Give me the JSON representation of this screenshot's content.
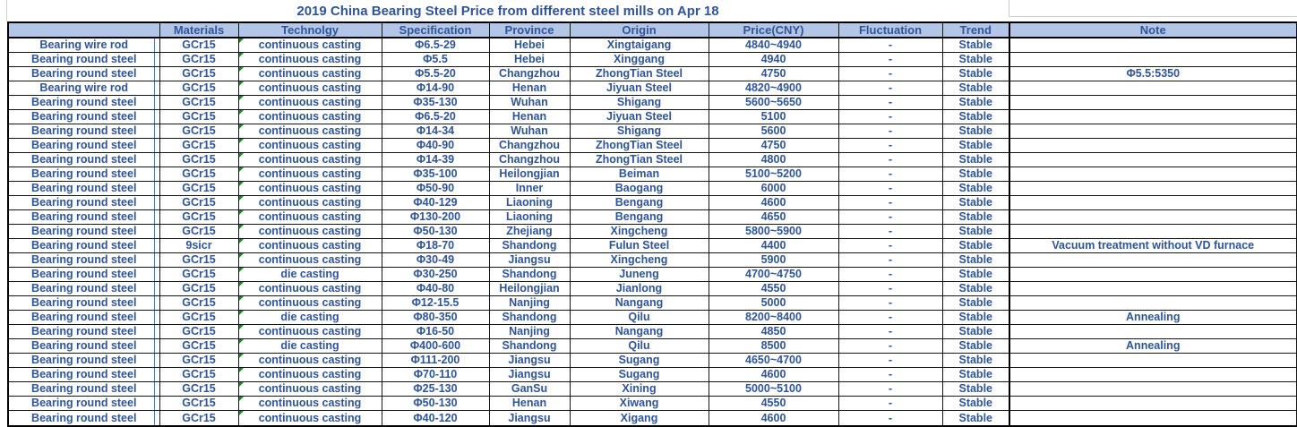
{
  "title": "2019 China Bearing Steel Price from different steel mills on Apr 18",
  "colors": {
    "text_blue": "#2f5597",
    "header_fill": "#b4c6e7",
    "grid_border": "#161616",
    "flag_green": "#1e8a1e",
    "faint_gridline": "#cfcfcf"
  },
  "icons": {
    "technology_cell_flag": "green-comment-triangle"
  },
  "table": {
    "columns": [
      {
        "key": "product",
        "label": ""
      },
      {
        "key": "materials",
        "label": "Materials"
      },
      {
        "key": "technology",
        "label": "Technolgy"
      },
      {
        "key": "specification",
        "label": "Specification"
      },
      {
        "key": "province",
        "label": "Province"
      },
      {
        "key": "origin",
        "label": "Origin"
      },
      {
        "key": "price",
        "label": "Price(CNY)"
      },
      {
        "key": "fluctuation",
        "label": "Fluctuation"
      },
      {
        "key": "trend",
        "label": "Trend"
      },
      {
        "key": "note",
        "label": "Note"
      }
    ],
    "flag_column_key": "technology",
    "rows": [
      [
        "Bearing wire rod",
        "GCr15",
        "continuous casting",
        "Φ6.5-29",
        "Hebei",
        "Xingtaigang",
        "4840~4940",
        "-",
        "Stable",
        ""
      ],
      [
        "Bearing round steel",
        "GCr15",
        "continuous casting",
        "Φ5.5",
        "Hebei",
        "Xinggang",
        "4940",
        "-",
        "Stable",
        ""
      ],
      [
        "Bearing round steel",
        "GCr15",
        "continuous casting",
        "Φ5.5-20",
        "Changzhou",
        "ZhongTian Steel",
        "4750",
        "-",
        "Stable",
        "Φ5.5:5350"
      ],
      [
        "Bearing wire rod",
        "GCr15",
        "continuous casting",
        "Φ14-90",
        "Henan",
        "Jiyuan Steel",
        "4820~4900",
        "-",
        "Stable",
        ""
      ],
      [
        "Bearing round steel",
        "GCr15",
        "continuous casting",
        "Φ35-130",
        "Wuhan",
        "Shigang",
        "5600~5650",
        "-",
        "Stable",
        ""
      ],
      [
        "Bearing round steel",
        "GCr15",
        "continuous casting",
        "Φ6.5-20",
        "Henan",
        "Jiyuan Steel",
        "5100",
        "-",
        "Stable",
        ""
      ],
      [
        "Bearing round steel",
        "GCr15",
        "continuous casting",
        "Φ14-34",
        "Wuhan",
        "Shigang",
        "5600",
        "-",
        "Stable",
        ""
      ],
      [
        "Bearing round steel",
        "GCr15",
        "continuous casting",
        "Φ40-90",
        "Changzhou",
        "ZhongTian Steel",
        "4750",
        "-",
        "Stable",
        ""
      ],
      [
        "Bearing round steel",
        "GCr15",
        "continuous casting",
        "Φ14-39",
        "Changzhou",
        "ZhongTian Steel",
        "4800",
        "-",
        "Stable",
        ""
      ],
      [
        "Bearing round steel",
        "GCr15",
        "continuous casting",
        "Φ35-100",
        "Heilongjian",
        "Beiman",
        "5100~5200",
        "-",
        "Stable",
        ""
      ],
      [
        "Bearing round steel",
        "GCr15",
        "continuous casting",
        "Φ50-90",
        "Inner",
        "Baogang",
        "6000",
        "-",
        "Stable",
        ""
      ],
      [
        "Bearing round steel",
        "GCr15",
        "continuous casting",
        "Φ40-129",
        "Liaoning",
        "Bengang",
        "4600",
        "-",
        "Stable",
        ""
      ],
      [
        "Bearing round steel",
        "GCr15",
        "continuous casting",
        "Φ130-200",
        "Liaoning",
        "Bengang",
        "4650",
        "-",
        "Stable",
        ""
      ],
      [
        "Bearing round steel",
        "GCr15",
        "continuous casting",
        "Φ50-130",
        "Zhejiang",
        "Xingcheng",
        "5800~5900",
        "-",
        "Stable",
        ""
      ],
      [
        "Bearing round steel",
        "9sicr",
        "continuous casting",
        "Φ18-70",
        "Shandong",
        "Fulun Steel",
        "4400",
        "-",
        "Stable",
        "Vacuum treatment without VD furnace"
      ],
      [
        "Bearing round steel",
        "GCr15",
        "continuous casting",
        "Φ30-49",
        "Jiangsu",
        "Xingcheng",
        "5900",
        "-",
        "Stable",
        ""
      ],
      [
        "Bearing round steel",
        "GCr15",
        "die casting",
        "Φ30-250",
        "Shandong",
        "Juneng",
        "4700~4750",
        "-",
        "Stable",
        ""
      ],
      [
        "Bearing round steel",
        "GCr15",
        "continuous casting",
        "Φ40-80",
        "Heilongjian",
        "Jianlong",
        "4550",
        "-",
        "Stable",
        ""
      ],
      [
        "Bearing round steel",
        "GCr15",
        "continuous casting",
        "Φ12-15.5",
        "Nanjing",
        "Nangang",
        "5000",
        "-",
        "Stable",
        ""
      ],
      [
        "Bearing round steel",
        "GCr15",
        "die casting",
        "Φ80-350",
        "Shandong",
        "Qilu",
        "8200~8400",
        "-",
        "Stable",
        "Annealing"
      ],
      [
        "Bearing round steel",
        "GCr15",
        "continuous casting",
        "Φ16-50",
        "Nanjing",
        "Nangang",
        "4850",
        "-",
        "Stable",
        ""
      ],
      [
        "Bearing round steel",
        "GCr15",
        "die casting",
        "Φ400-600",
        "Shandong",
        "Qilu",
        "8500",
        "-",
        "Stable",
        "Annealing"
      ],
      [
        "Bearing round steel",
        "GCr15",
        "continuous casting",
        "Φ111-200",
        "Jiangsu",
        "Sugang",
        "4650~4700",
        "-",
        "Stable",
        ""
      ],
      [
        "Bearing round steel",
        "GCr15",
        "continuous casting",
        "Φ70-110",
        "Jiangsu",
        "Sugang",
        "4600",
        "-",
        "Stable",
        ""
      ],
      [
        "Bearing round steel",
        "GCr15",
        "continuous casting",
        "Φ25-130",
        "GanSu",
        "Xining",
        "5000~5100",
        "-",
        "Stable",
        ""
      ],
      [
        "Bearing round steel",
        "GCr15",
        "continuous casting",
        "Φ50-130",
        "Henan",
        "Xiwang",
        "4550",
        "-",
        "Stable",
        ""
      ],
      [
        "Bearing round steel",
        "GCr15",
        "continuous casting",
        "Φ40-120",
        "Jiangsu",
        "Xigang",
        "4600",
        "-",
        "Stable",
        ""
      ]
    ]
  }
}
